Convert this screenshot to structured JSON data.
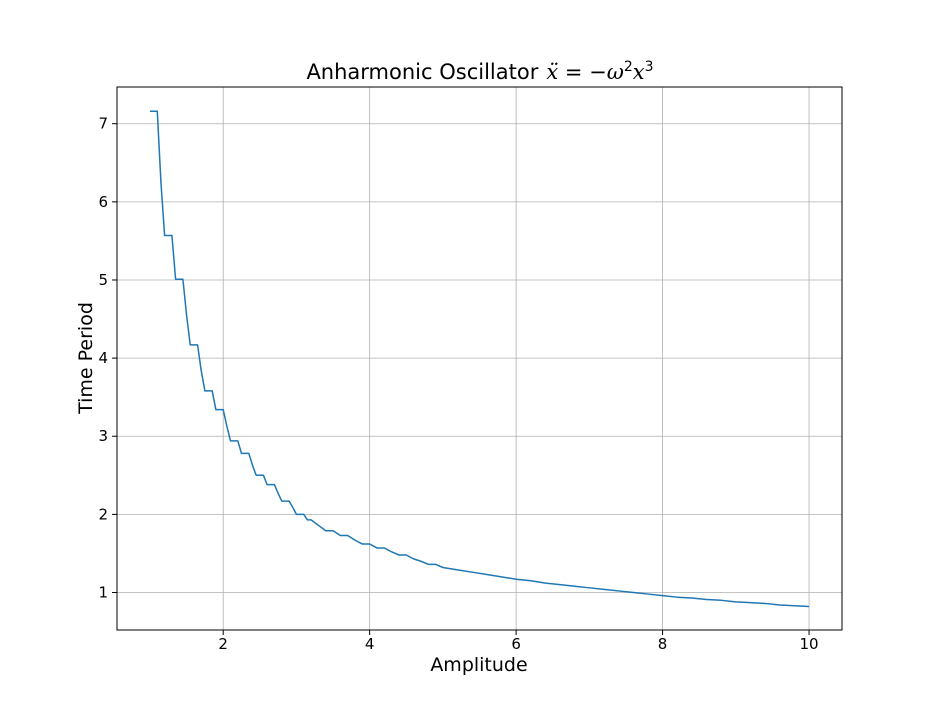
{
  "chart_data": {
    "type": "line",
    "title": "Anharmonic Oscillator",
    "title_equation": {
      "lhs": "ẍ",
      "eq": " = −",
      "omega": "ω",
      "omega_exp": "2",
      "var": "x",
      "var_exp": "3"
    },
    "xlabel": "Amplitude",
    "ylabel": "Time Period",
    "xlim": [
      0.55,
      10.45
    ],
    "ylim": [
      0.52,
      7.47
    ],
    "xticks": [
      2,
      4,
      6,
      8,
      10
    ],
    "yticks": [
      1,
      2,
      3,
      4,
      5,
      6,
      7
    ],
    "grid": true,
    "line_color": "#1f77b4",
    "series": [
      {
        "x": [
          1.0,
          1.05,
          1.1,
          1.15,
          1.2,
          1.25,
          1.3,
          1.35,
          1.4,
          1.45,
          1.5,
          1.55,
          1.6,
          1.65,
          1.7,
          1.75,
          1.8,
          1.85,
          1.9,
          1.95,
          2.0,
          2.05,
          2.1,
          2.15,
          2.2,
          2.25,
          2.3,
          2.35,
          2.4,
          2.45,
          2.5,
          2.55,
          2.6,
          2.65,
          2.7,
          2.75,
          2.8,
          2.85,
          2.9,
          2.95,
          3.0,
          3.05,
          3.1,
          3.15,
          3.2,
          3.3,
          3.4,
          3.5,
          3.6,
          3.7,
          3.8,
          3.9,
          4.0,
          4.1,
          4.2,
          4.3,
          4.4,
          4.5,
          4.6,
          4.7,
          4.8,
          4.9,
          5.0,
          5.2,
          5.4,
          5.6,
          5.8,
          6.0,
          6.2,
          6.4,
          6.6,
          6.8,
          7.0,
          7.2,
          7.4,
          7.6,
          7.8,
          8.0,
          8.2,
          8.4,
          8.6,
          8.8,
          9.0,
          9.2,
          9.4,
          9.6,
          9.8,
          10.0
        ],
        "values": [
          7.16,
          7.16,
          7.16,
          6.25,
          5.57,
          5.57,
          5.57,
          5.01,
          5.01,
          5.01,
          4.55,
          4.17,
          4.17,
          4.17,
          3.84,
          3.58,
          3.58,
          3.58,
          3.34,
          3.34,
          3.34,
          3.13,
          2.94,
          2.94,
          2.94,
          2.78,
          2.78,
          2.78,
          2.63,
          2.5,
          2.5,
          2.5,
          2.38,
          2.38,
          2.38,
          2.27,
          2.17,
          2.17,
          2.17,
          2.09,
          2.0,
          2.0,
          2.0,
          1.93,
          1.93,
          1.86,
          1.79,
          1.79,
          1.73,
          1.73,
          1.67,
          1.62,
          1.62,
          1.57,
          1.57,
          1.52,
          1.48,
          1.48,
          1.43,
          1.4,
          1.36,
          1.36,
          1.32,
          1.29,
          1.26,
          1.23,
          1.2,
          1.17,
          1.15,
          1.12,
          1.1,
          1.08,
          1.06,
          1.04,
          1.02,
          1.0,
          0.98,
          0.96,
          0.94,
          0.93,
          0.91,
          0.9,
          0.88,
          0.87,
          0.86,
          0.84,
          0.83,
          0.82
        ]
      }
    ]
  }
}
